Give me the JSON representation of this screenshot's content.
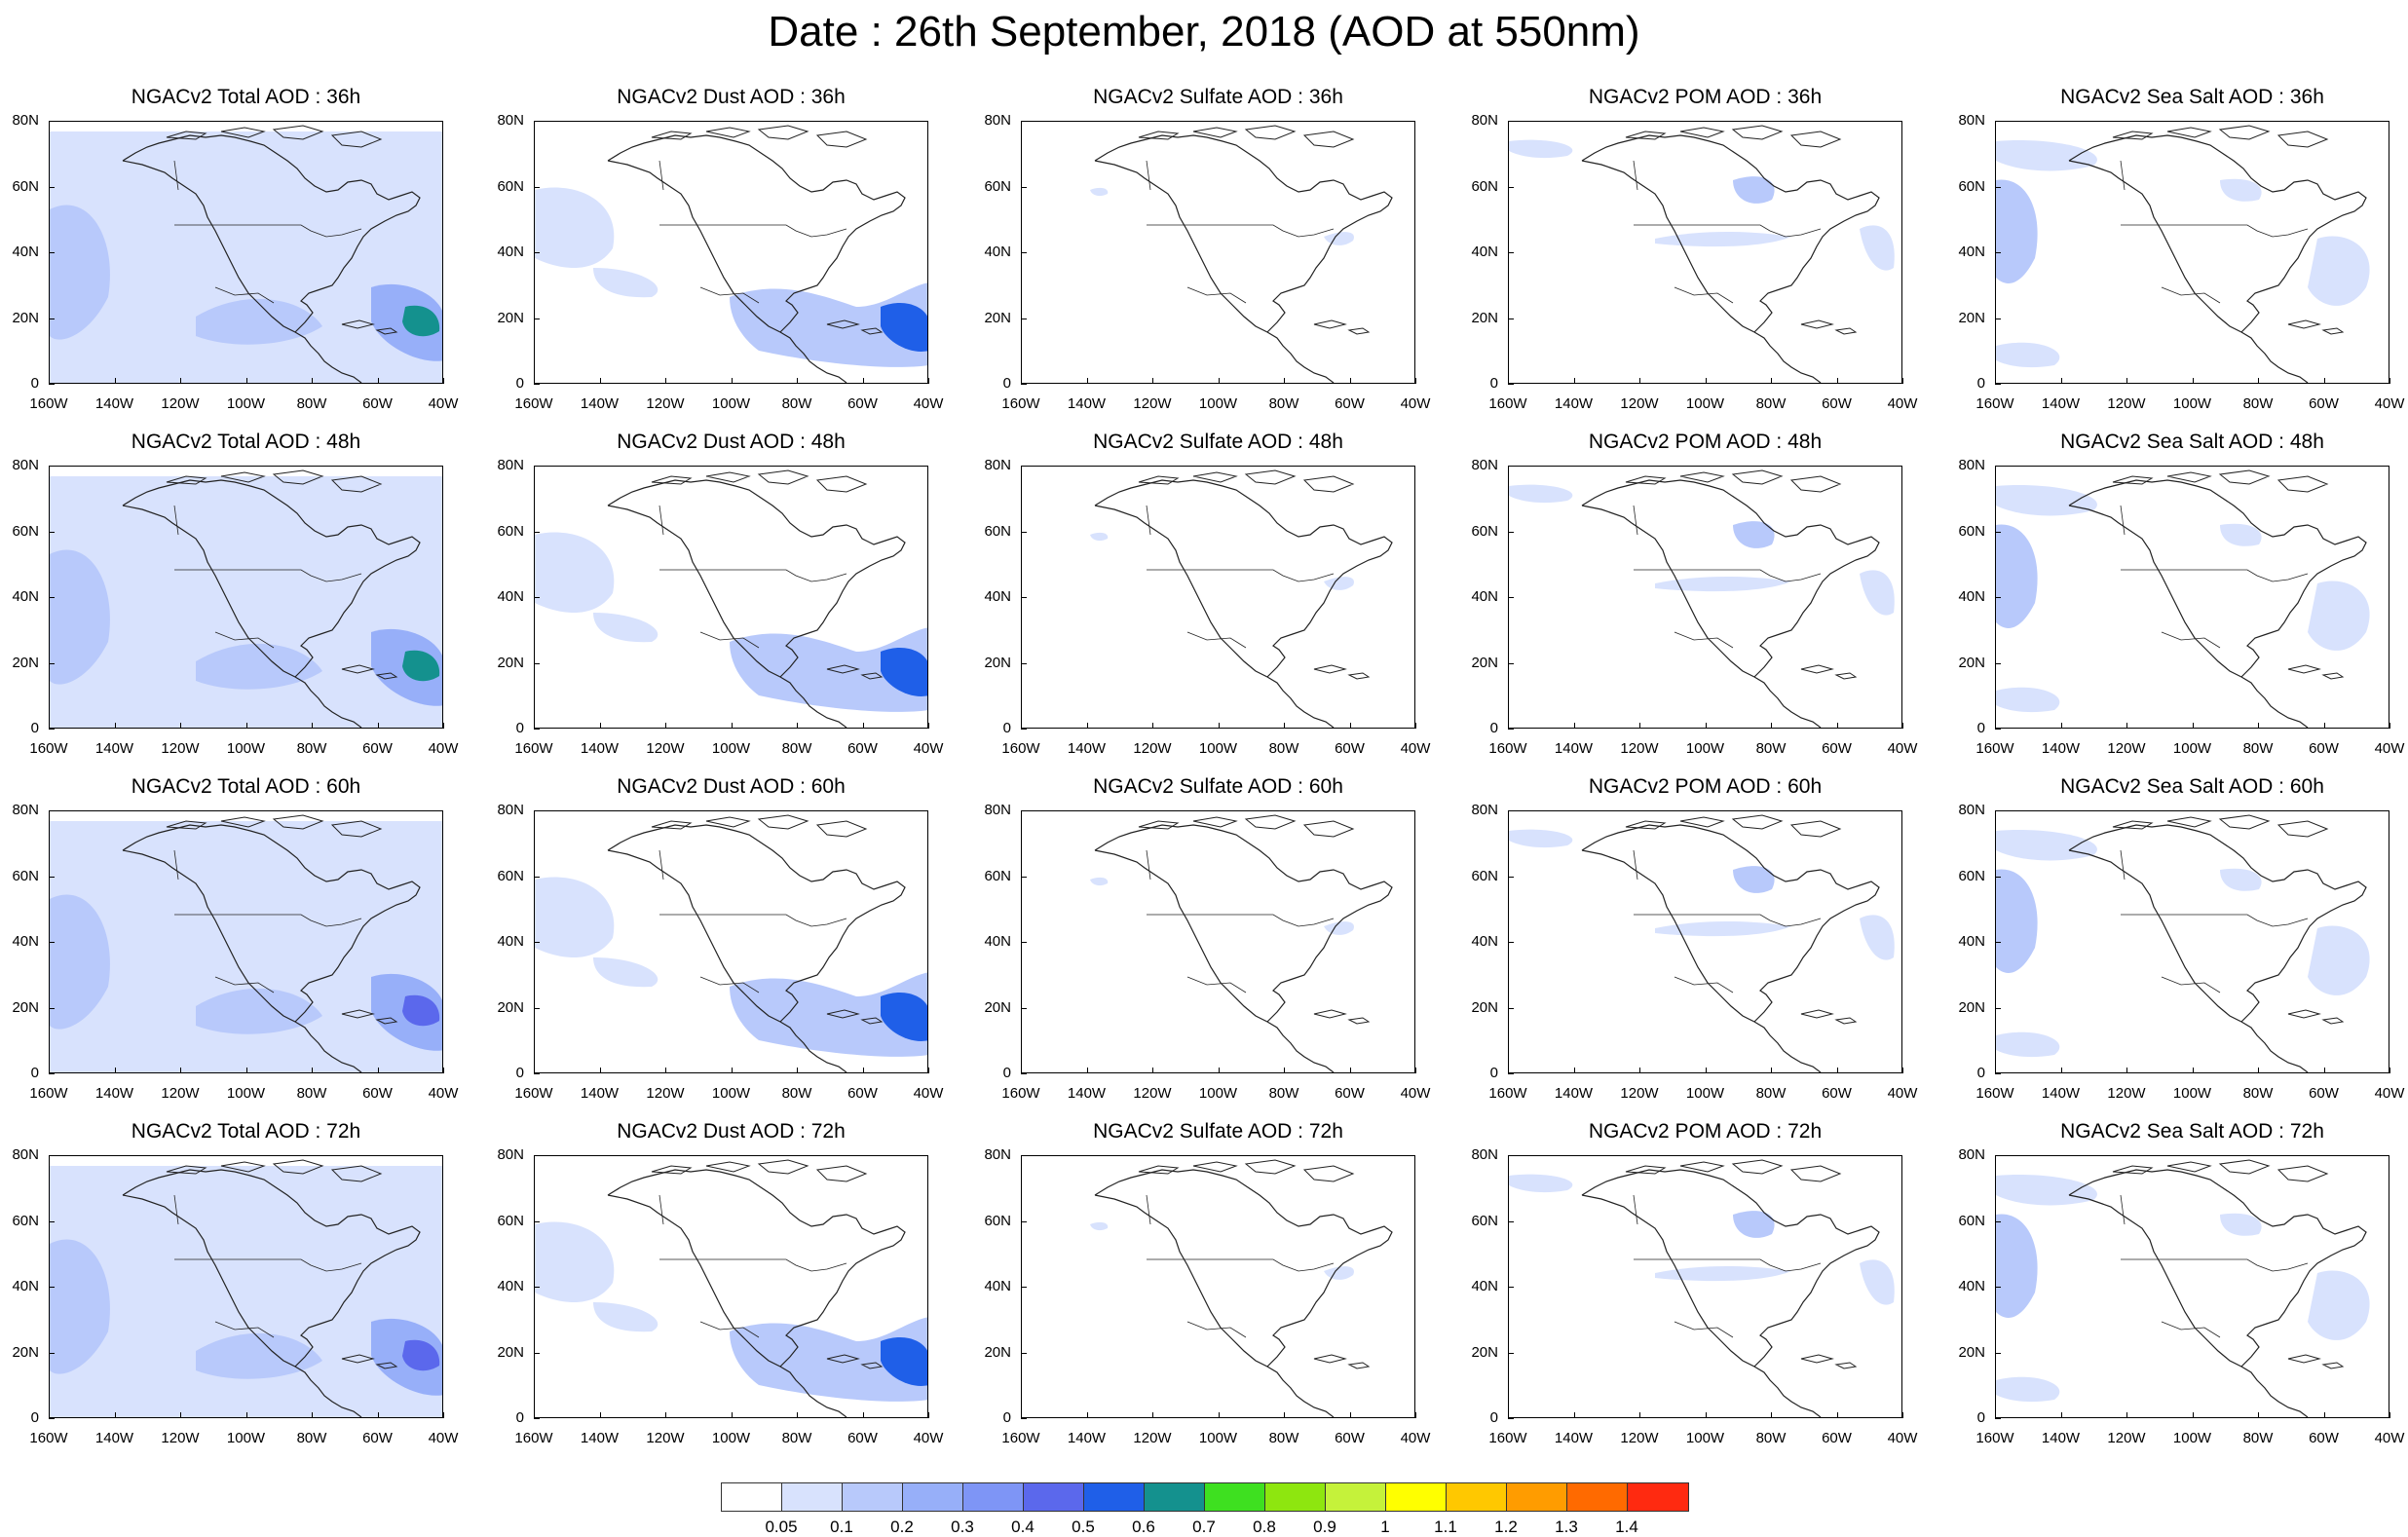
{
  "title": "Date : 26th September, 2018 (AOD at 550nm)",
  "y_ticks": [
    "80N",
    "60N",
    "40N",
    "20N",
    "0"
  ],
  "x_ticks": [
    "160W",
    "140W",
    "120W",
    "100W",
    "80W",
    "60W",
    "40W"
  ],
  "panels": [
    [
      "NGACv2 Total AOD : 36h",
      "NGACv2 Dust AOD : 36h",
      "NGACv2 Sulfate AOD : 36h",
      "NGACv2 POM AOD : 36h",
      "NGACv2 Sea Salt AOD : 36h"
    ],
    [
      "NGACv2 Total AOD : 48h",
      "NGACv2 Dust AOD : 48h",
      "NGACv2 Sulfate AOD : 48h",
      "NGACv2 POM AOD : 48h",
      "NGACv2 Sea Salt AOD : 48h"
    ],
    [
      "NGACv2 Total AOD : 60h",
      "NGACv2 Dust AOD : 60h",
      "NGACv2 Sulfate AOD : 60h",
      "NGACv2 POM AOD : 60h",
      "NGACv2 Sea Salt AOD : 60h"
    ],
    [
      "NGACv2 Total AOD : 72h",
      "NGACv2 Dust AOD : 72h",
      "NGACv2 Sulfate AOD : 72h",
      "NGACv2 POM AOD : 72h",
      "NGACv2 Sea Salt  AOD : 72h"
    ]
  ],
  "colorbar": {
    "labels": [
      "0.05",
      "0.1",
      "0.2",
      "0.3",
      "0.4",
      "0.5",
      "0.6",
      "0.7",
      "0.8",
      "0.9",
      "1",
      "1.1",
      "1.2",
      "1.3",
      "1.4"
    ],
    "colors": [
      "#ffffff",
      "#d8e2fd",
      "#b8c9fb",
      "#97aff9",
      "#7e95f6",
      "#5b68ec",
      "#1f5fe8",
      "#14918e",
      "#3ee020",
      "#8ee60f",
      "#c5f23a",
      "#ffff00",
      "#ffc800",
      "#ff9c00",
      "#ff6a00",
      "#ff2a10"
    ]
  }
}
